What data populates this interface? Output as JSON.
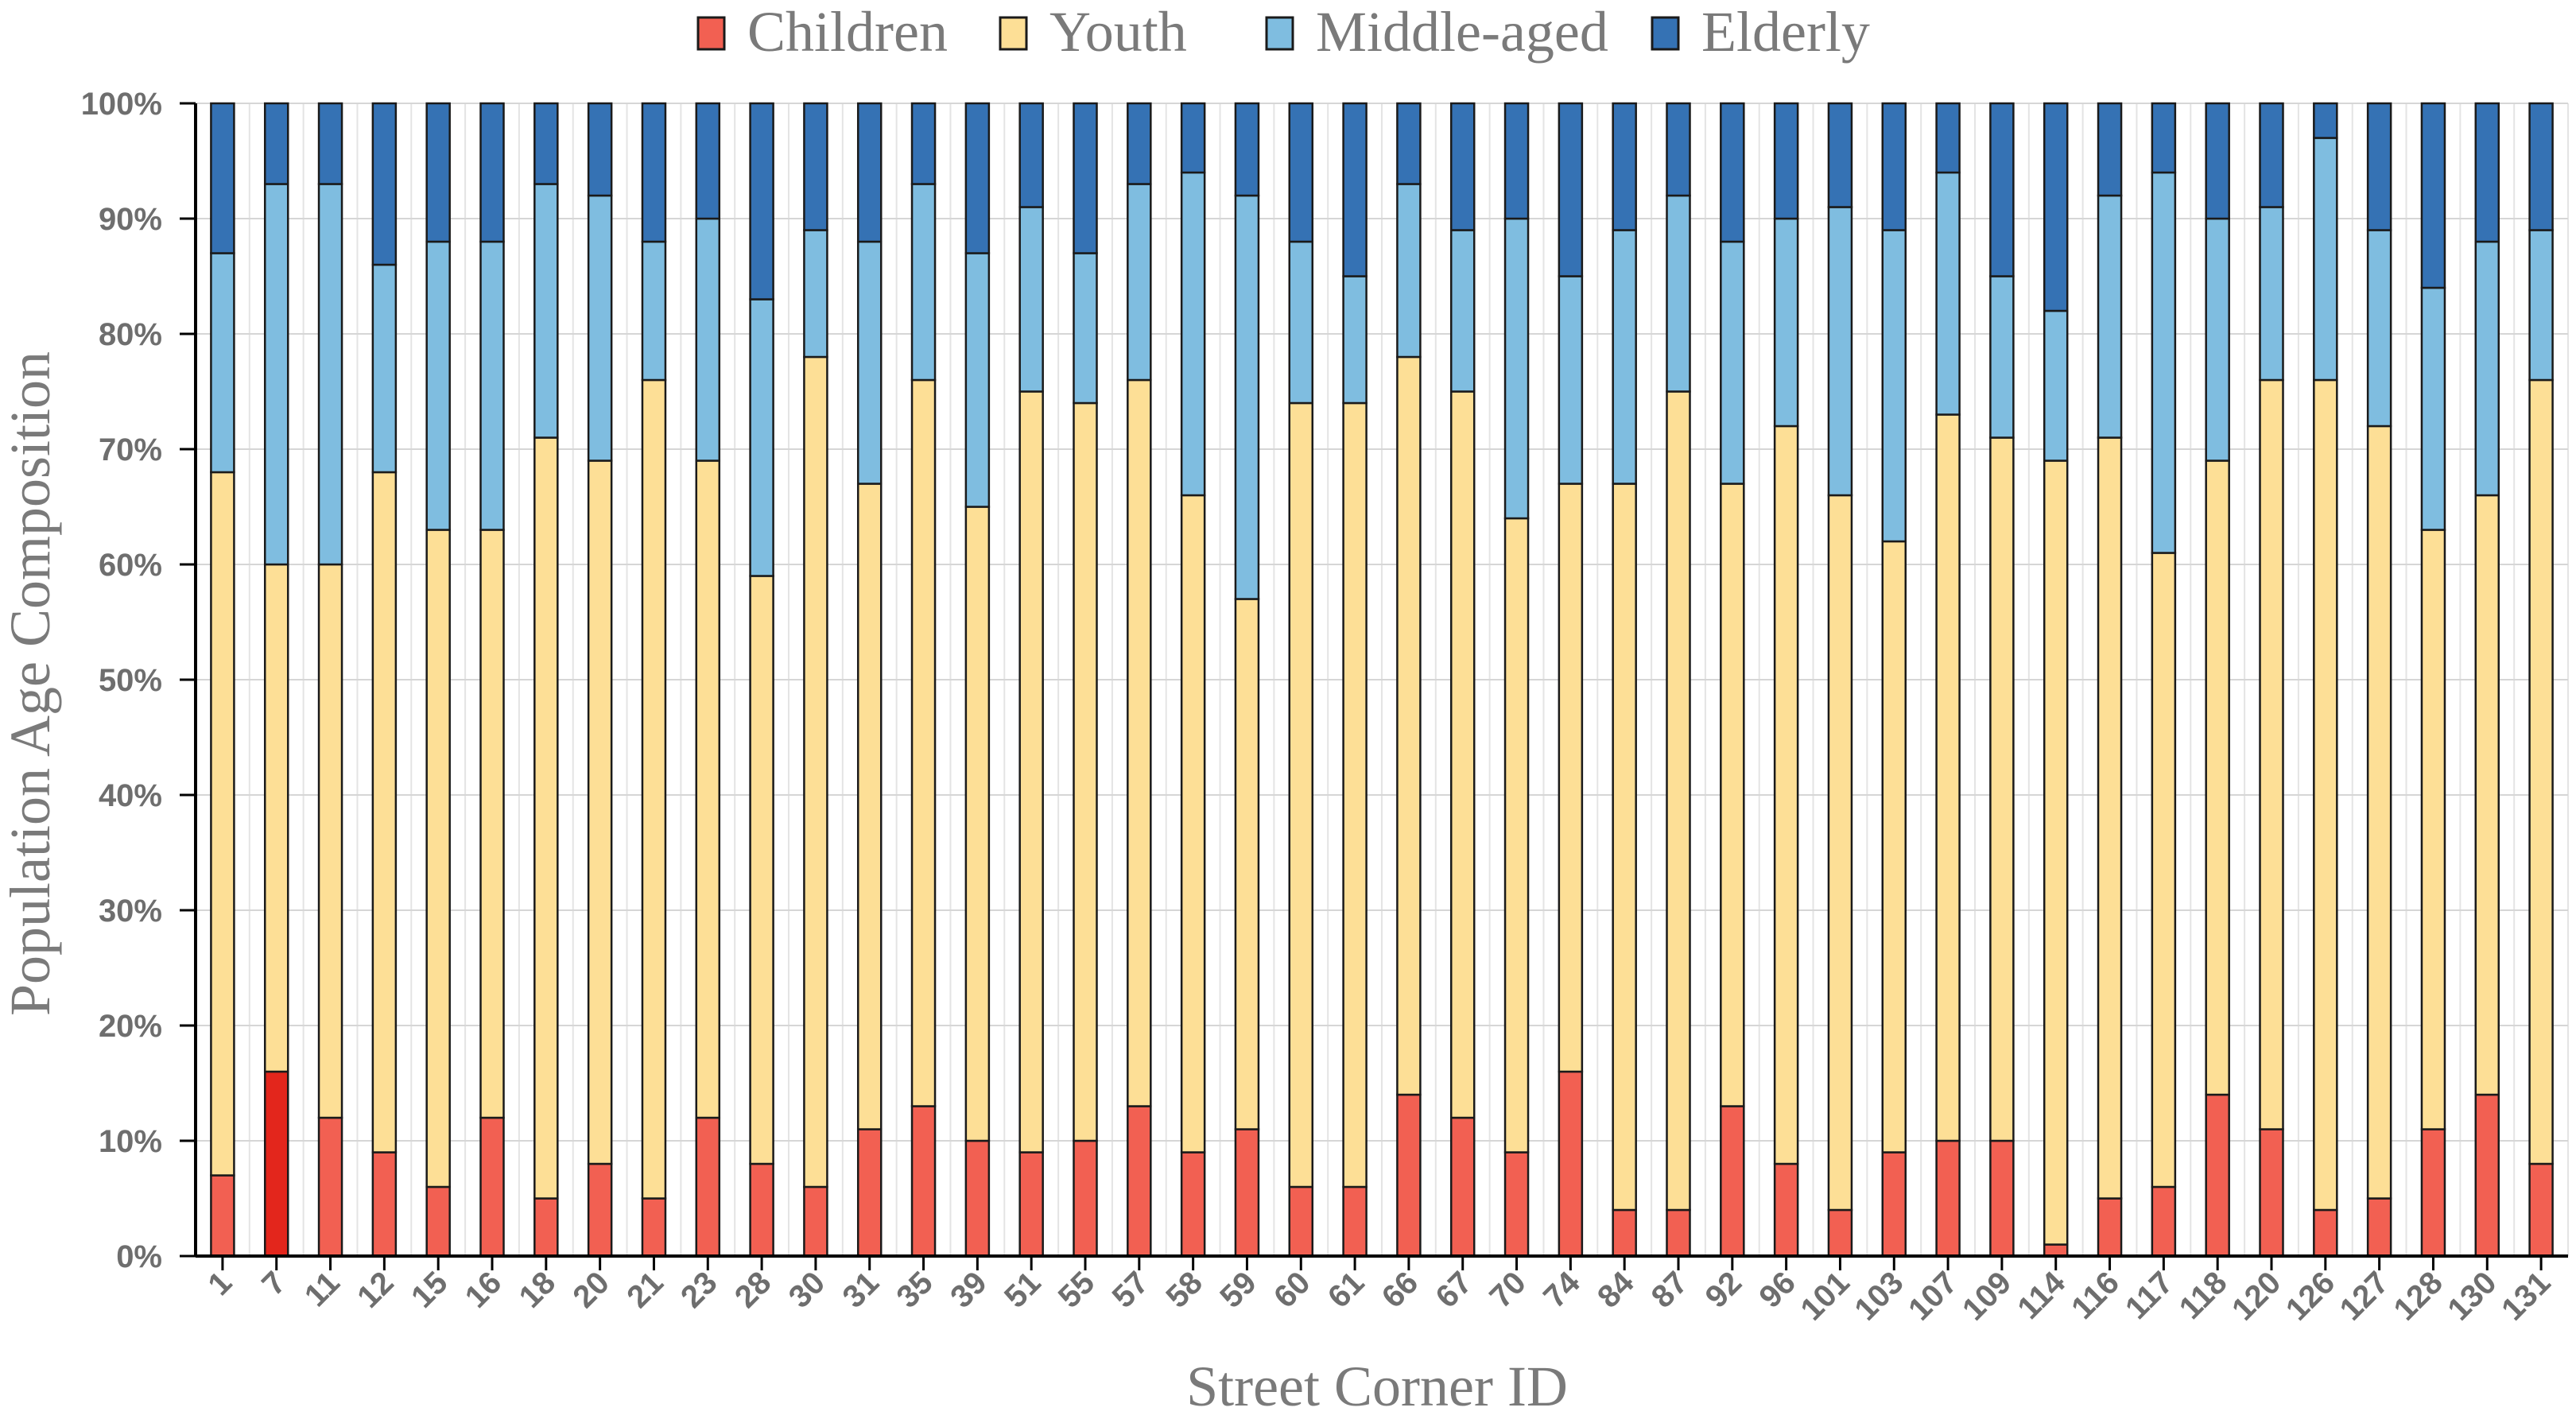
{
  "chart_data": {
    "type": "bar",
    "stacked": true,
    "title": "",
    "xlabel": "Street Corner ID",
    "ylabel": "Population Age Composition",
    "ylim": [
      0,
      100
    ],
    "yticks": [
      "0%",
      "10%",
      "20%",
      "30%",
      "40%",
      "50%",
      "60%",
      "70%",
      "80%",
      "90%",
      "100%"
    ],
    "legend_position": "top-center",
    "categories": [
      "1",
      "7",
      "11",
      "12",
      "15",
      "16",
      "18",
      "20",
      "21",
      "23",
      "28",
      "30",
      "31",
      "35",
      "39",
      "51",
      "55",
      "57",
      "58",
      "59",
      "60",
      "61",
      "66",
      "67",
      "70",
      "74",
      "84",
      "87",
      "92",
      "96",
      "101",
      "103",
      "107",
      "109",
      "114",
      "116",
      "117",
      "118",
      "120",
      "126",
      "127",
      "128",
      "130",
      "131"
    ],
    "series": [
      {
        "name": "Children",
        "color": "#f26052",
        "values": [
          7,
          16,
          12,
          9,
          6,
          12,
          5,
          8,
          5,
          12,
          8,
          6,
          11,
          13,
          10,
          9,
          10,
          13,
          9,
          11,
          6,
          6,
          14,
          12,
          9,
          16,
          4,
          4,
          13,
          8,
          4,
          9,
          10,
          10,
          1,
          5,
          6,
          14,
          11,
          4,
          5,
          11,
          14,
          8
        ]
      },
      {
        "name": "Youth",
        "color": "#fddf96",
        "values": [
          61,
          44,
          48,
          59,
          57,
          51,
          66,
          61,
          71,
          57,
          51,
          72,
          56,
          63,
          55,
          66,
          64,
          63,
          57,
          46,
          68,
          68,
          64,
          63,
          55,
          51,
          63,
          71,
          54,
          64,
          62,
          53,
          63,
          61,
          68,
          66,
          55,
          55,
          65,
          72,
          67,
          52,
          52,
          68
        ]
      },
      {
        "name": "Middle-aged",
        "color": "#7fbde0",
        "values": [
          19,
          33,
          33,
          18,
          25,
          25,
          22,
          23,
          12,
          21,
          24,
          11,
          21,
          17,
          22,
          16,
          13,
          17,
          28,
          35,
          14,
          11,
          15,
          14,
          26,
          18,
          22,
          17,
          21,
          18,
          25,
          27,
          21,
          14,
          13,
          21,
          33,
          21,
          15,
          21,
          17,
          21,
          22,
          13
        ]
      },
      {
        "name": "Elderly",
        "color": "#3572b4",
        "values": [
          13,
          7,
          7,
          14,
          12,
          12,
          7,
          8,
          12,
          10,
          17,
          11,
          12,
          7,
          13,
          9,
          13,
          7,
          6,
          8,
          12,
          15,
          7,
          11,
          10,
          15,
          11,
          8,
          12,
          10,
          9,
          11,
          6,
          15,
          18,
          8,
          6,
          10,
          9,
          3,
          11,
          16,
          12,
          11
        ]
      }
    ],
    "highlight_bar": {
      "category": "7",
      "series": "Children",
      "color": "#e3261c"
    }
  }
}
